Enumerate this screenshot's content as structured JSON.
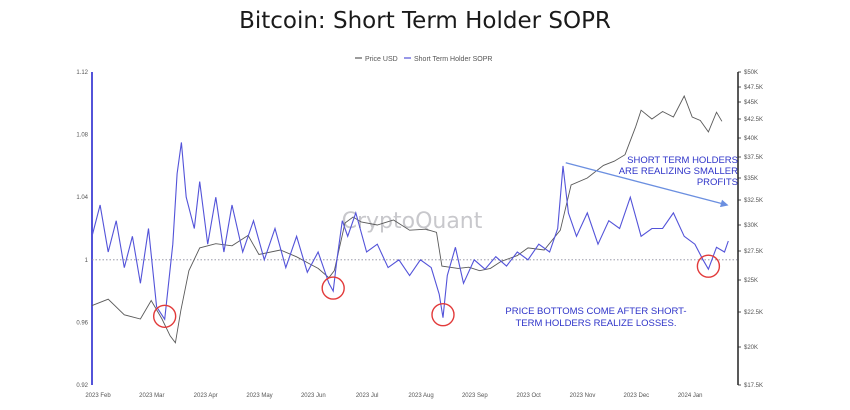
{
  "chart_data": {
    "type": "line",
    "title": "Bitcoin: Short Term Holder SOPR",
    "watermark": "CryptoQuant",
    "legend": [
      "Price USD",
      "Short Term Holder SOPR"
    ],
    "left_axis": {
      "min": 0.92,
      "max": 1.12,
      "ticks": [
        "0.92",
        "0.96",
        "1",
        "1.04",
        "1.08",
        "1.12"
      ]
    },
    "right_axis": {
      "ticks": [
        {
          "label": "$17.5K",
          "value": 17500
        },
        {
          "label": "$20K",
          "value": 20000
        },
        {
          "label": "$22.5K",
          "value": 22500
        },
        {
          "label": "$25K",
          "value": 25000
        },
        {
          "label": "$27.5K",
          "value": 27500
        },
        {
          "label": "$30K",
          "value": 30000
        },
        {
          "label": "$32.5K",
          "value": 32500
        },
        {
          "label": "$35K",
          "value": 35000
        },
        {
          "label": "$37.5K",
          "value": 37500
        },
        {
          "label": "$40K",
          "value": 40000
        },
        {
          "label": "$42.5K",
          "value": 42500
        },
        {
          "label": "$45K",
          "value": 45000
        },
        {
          "label": "$47.5K",
          "value": 47500
        },
        {
          "label": "$50K",
          "value": 50000
        }
      ]
    },
    "x_labels": [
      "2023 Feb",
      "2023 Mar",
      "2023 Apr",
      "2023 May",
      "2023 Jun",
      "2023 Jul",
      "2023 Aug",
      "2023 Sep",
      "2023 Oct",
      "2023 Nov",
      "2023 Dec",
      "2024 Jan"
    ],
    "x_domain": [
      0,
      12
    ],
    "series": [
      {
        "name": "Price USD",
        "color": "#5a5a5a",
        "points": [
          [
            0,
            23000
          ],
          [
            0.3,
            23500
          ],
          [
            0.6,
            22300
          ],
          [
            0.9,
            22000
          ],
          [
            1.1,
            23400
          ],
          [
            1.3,
            22000
          ],
          [
            1.45,
            20800
          ],
          [
            1.55,
            20300
          ],
          [
            1.65,
            22600
          ],
          [
            1.8,
            25800
          ],
          [
            2.0,
            27800
          ],
          [
            2.3,
            28200
          ],
          [
            2.6,
            28000
          ],
          [
            2.9,
            29000
          ],
          [
            3.1,
            27200
          ],
          [
            3.5,
            27600
          ],
          [
            3.8,
            27000
          ],
          [
            4.0,
            26500
          ],
          [
            4.2,
            26000
          ],
          [
            4.4,
            25200
          ],
          [
            4.5,
            25800
          ],
          [
            4.7,
            30200
          ],
          [
            4.85,
            30800
          ],
          [
            5.0,
            30300
          ],
          [
            5.3,
            30000
          ],
          [
            5.6,
            30500
          ],
          [
            5.9,
            29500
          ],
          [
            6.2,
            29600
          ],
          [
            6.4,
            29300
          ],
          [
            6.5,
            26200
          ],
          [
            6.8,
            26000
          ],
          [
            7.0,
            26100
          ],
          [
            7.2,
            25800
          ],
          [
            7.4,
            26000
          ],
          [
            7.6,
            26600
          ],
          [
            7.9,
            27100
          ],
          [
            8.1,
            27800
          ],
          [
            8.4,
            27600
          ],
          [
            8.7,
            29500
          ],
          [
            8.9,
            34200
          ],
          [
            9.2,
            35000
          ],
          [
            9.5,
            36500
          ],
          [
            9.7,
            37000
          ],
          [
            9.9,
            37800
          ],
          [
            10.1,
            41500
          ],
          [
            10.2,
            43800
          ],
          [
            10.4,
            42500
          ],
          [
            10.6,
            43600
          ],
          [
            10.8,
            42800
          ],
          [
            11.0,
            46000
          ],
          [
            11.15,
            42800
          ],
          [
            11.3,
            42300
          ],
          [
            11.45,
            40800
          ],
          [
            11.6,
            43500
          ],
          [
            11.7,
            42200
          ]
        ]
      },
      {
        "name": "Short Term Holder SOPR",
        "color": "#5353d9",
        "points": [
          [
            0,
            1.015
          ],
          [
            0.15,
            1.035
          ],
          [
            0.3,
            1.005
          ],
          [
            0.45,
            1.025
          ],
          [
            0.6,
            0.995
          ],
          [
            0.75,
            1.015
          ],
          [
            0.9,
            0.985
          ],
          [
            1.05,
            1.02
          ],
          [
            1.2,
            0.97
          ],
          [
            1.35,
            0.962
          ],
          [
            1.5,
            1.01
          ],
          [
            1.58,
            1.055
          ],
          [
            1.66,
            1.075
          ],
          [
            1.75,
            1.04
          ],
          [
            1.9,
            1.02
          ],
          [
            2.0,
            1.05
          ],
          [
            2.15,
            1.01
          ],
          [
            2.3,
            1.04
          ],
          [
            2.45,
            1.005
          ],
          [
            2.6,
            1.035
          ],
          [
            2.8,
            1.005
          ],
          [
            3.0,
            1.025
          ],
          [
            3.2,
            1.0
          ],
          [
            3.4,
            1.02
          ],
          [
            3.6,
            0.995
          ],
          [
            3.8,
            1.015
          ],
          [
            4.0,
            0.992
          ],
          [
            4.2,
            1.005
          ],
          [
            4.4,
            0.985
          ],
          [
            4.48,
            0.98
          ],
          [
            4.55,
            1.0
          ],
          [
            4.65,
            1.025
          ],
          [
            4.75,
            1.015
          ],
          [
            4.9,
            1.03
          ],
          [
            5.1,
            1.005
          ],
          [
            5.3,
            1.01
          ],
          [
            5.5,
            0.995
          ],
          [
            5.7,
            1.0
          ],
          [
            5.9,
            0.99
          ],
          [
            6.1,
            1.0
          ],
          [
            6.3,
            0.995
          ],
          [
            6.45,
            0.978
          ],
          [
            6.52,
            0.963
          ],
          [
            6.6,
            0.99
          ],
          [
            6.75,
            1.008
          ],
          [
            6.9,
            0.985
          ],
          [
            7.1,
            1.0
          ],
          [
            7.3,
            0.994
          ],
          [
            7.5,
            1.002
          ],
          [
            7.7,
            0.996
          ],
          [
            7.9,
            1.005
          ],
          [
            8.1,
            1.0
          ],
          [
            8.3,
            1.01
          ],
          [
            8.5,
            1.005
          ],
          [
            8.65,
            1.02
          ],
          [
            8.75,
            1.06
          ],
          [
            8.85,
            1.03
          ],
          [
            9.0,
            1.015
          ],
          [
            9.2,
            1.03
          ],
          [
            9.4,
            1.01
          ],
          [
            9.6,
            1.025
          ],
          [
            9.8,
            1.02
          ],
          [
            10.0,
            1.04
          ],
          [
            10.2,
            1.015
          ],
          [
            10.4,
            1.02
          ],
          [
            10.6,
            1.02
          ],
          [
            10.8,
            1.03
          ],
          [
            11.0,
            1.015
          ],
          [
            11.2,
            1.01
          ],
          [
            11.35,
            1.0
          ],
          [
            11.45,
            0.994
          ],
          [
            11.6,
            1.008
          ],
          [
            11.75,
            1.005
          ],
          [
            11.82,
            1.012
          ]
        ]
      }
    ],
    "reference_line": {
      "value": 1,
      "style": "dotted"
    },
    "trend_arrow": {
      "from": [
        8.8,
        1.062
      ],
      "to": [
        11.8,
        1.035
      ]
    },
    "highlights": [
      {
        "label": "bottom",
        "x": 1.35,
        "y": 0.962
      },
      {
        "label": "bottom",
        "x": 4.48,
        "y": 0.98
      },
      {
        "label": "bottom",
        "x": 6.52,
        "y": 0.963
      },
      {
        "label": "bottom",
        "x": 11.45,
        "y": 0.994
      }
    ],
    "annotations": {
      "stability": [
        "SHORT TERM HOLDERS",
        "ARE REALIZING SMALLER",
        "PROFITS"
      ],
      "bottoms": [
        "PRICE BOTTOMS COME AFTER SHORT-",
        "TERM HOLDERS REALIZE LOSSES."
      ]
    }
  }
}
